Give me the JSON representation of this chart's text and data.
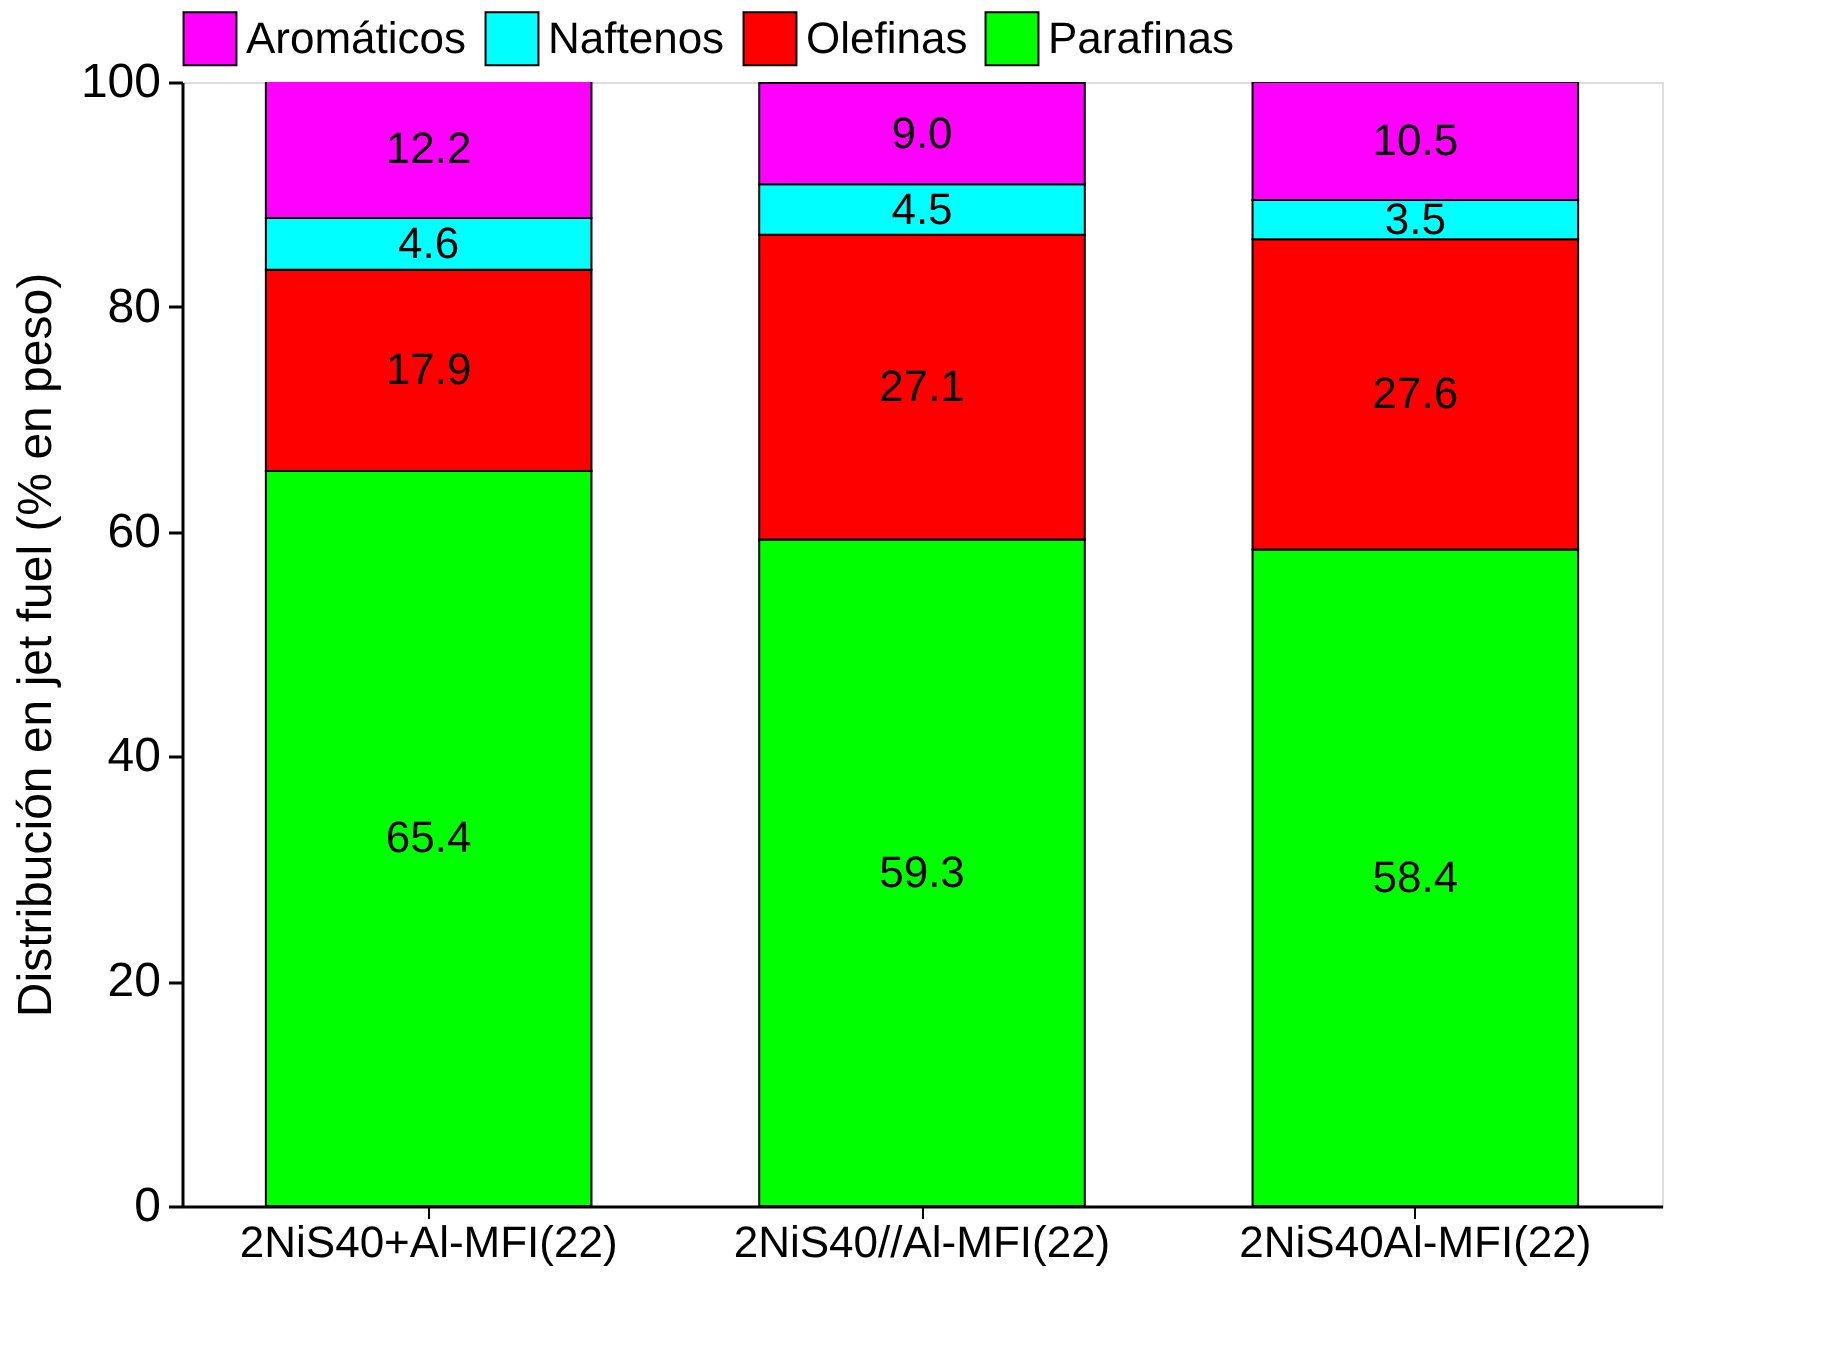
{
  "chart_data": {
    "type": "bar",
    "stacked": true,
    "ylabel": "Distribución en jet fuel (% en peso)",
    "categories": [
      "2NiS40+Al-MFI(22)",
      "2NiS40//Al-MFI(22)",
      "2NiS40Al-MFI(22)"
    ],
    "series": [
      {
        "name": "Parafinas",
        "color": "#00ff00",
        "values": [
          65.4,
          59.3,
          58.4
        ],
        "value_labels": [
          "65.4",
          "59.3",
          "58.4"
        ]
      },
      {
        "name": "Olefinas",
        "color": "#ff0000",
        "values": [
          17.9,
          27.1,
          27.6
        ],
        "value_labels": [
          "17.9",
          "27.1",
          "27.6"
        ]
      },
      {
        "name": "Naftenos",
        "color": "#00ffff",
        "values": [
          4.6,
          4.5,
          3.5
        ],
        "value_labels": [
          "4.6",
          "4.5",
          "3.5"
        ]
      },
      {
        "name": "Aromáticos",
        "color": "#ff00ff",
        "values": [
          12.2,
          9.0,
          10.5
        ],
        "value_labels": [
          "12.2",
          "9.0",
          "10.5"
        ]
      }
    ],
    "ylim": [
      0,
      100
    ],
    "yticks": [
      0,
      20,
      40,
      60,
      80,
      100
    ],
    "grid": false,
    "legend": "top"
  }
}
